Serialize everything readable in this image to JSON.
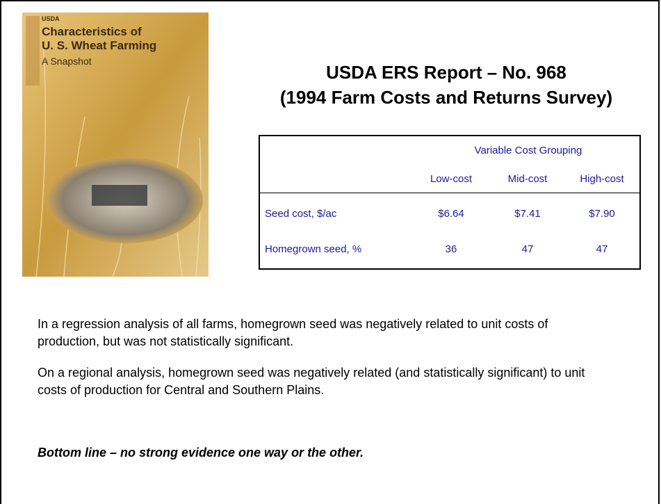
{
  "cover": {
    "agency": "USDA",
    "title_lines": [
      "Characteristics of",
      "U. S. Wheat Farming"
    ],
    "subtitle": "A Snapshot"
  },
  "title": [
    "USDA ERS Report – No. 968",
    "(1994 Farm Costs and Returns Survey)"
  ],
  "table": {
    "group_header": "Variable Cost Grouping",
    "columns": [
      "Low-cost",
      "Mid-cost",
      "High-cost"
    ],
    "rows": [
      {
        "label": "Seed cost, $/ac",
        "cells": [
          "$6.64",
          "$7.41",
          "$7.90"
        ]
      },
      {
        "label": "Homegrown seed, %",
        "cells": [
          36,
          47,
          47
        ]
      }
    ]
  },
  "paragraphs": [
    "In a regression analysis of all farms, homegrown seed was negatively related to unit costs of production, but was not statistically significant.",
    "On a regional analysis, homegrown seed was negatively related (and statistically significant) to unit costs of production for Central and Southern Plains."
  ],
  "bottom_line": "Bottom line – no strong evidence one way or the other."
}
